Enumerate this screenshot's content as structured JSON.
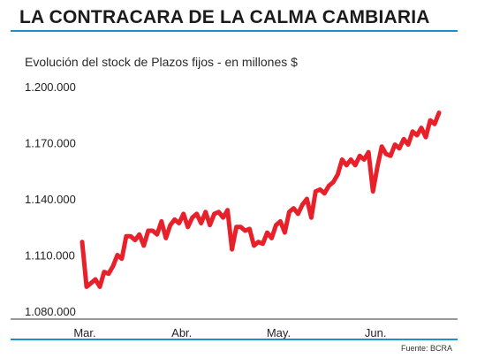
{
  "header": {
    "title": "LA CONTRACARA DE LA CALMA CAMBIARIA",
    "rule_color": "#1e8fce"
  },
  "footer": {
    "source": "Fuente: BCRA"
  },
  "chart_data": {
    "type": "line",
    "subtitle": "Evolución del stock de Plazos fijos - en millones $",
    "xlabel": "",
    "ylabel": "",
    "ylim": [
      1080000,
      1200000
    ],
    "y_ticks": [
      1080000,
      1110000,
      1140000,
      1170000,
      1200000
    ],
    "y_tick_labels": [
      "1.080.000",
      "1.110.000",
      "1.140.000",
      "1.170.000",
      "1.200.000"
    ],
    "x_ticks": [
      {
        "x": 0,
        "label": "Mar."
      },
      {
        "x": 22,
        "label": "Abr."
      },
      {
        "x": 44,
        "label": "May."
      },
      {
        "x": 66,
        "label": "Jun."
      }
    ],
    "xlim": [
      0,
      80
    ],
    "grid": false,
    "line_color": "#e8202a",
    "series": [
      {
        "values": [
          [
            0,
            1117000
          ],
          [
            1,
            1093000
          ],
          [
            2,
            1095000
          ],
          [
            3,
            1097000
          ],
          [
            4,
            1093000
          ],
          [
            5,
            1101000
          ],
          [
            6,
            1100000
          ],
          [
            7,
            1104000
          ],
          [
            8,
            1110000
          ],
          [
            9,
            1108000
          ],
          [
            10,
            1120000
          ],
          [
            11,
            1120000
          ],
          [
            12,
            1118000
          ],
          [
            13,
            1121000
          ],
          [
            14,
            1115000
          ],
          [
            15,
            1123000
          ],
          [
            16,
            1123000
          ],
          [
            17,
            1121000
          ],
          [
            18,
            1128000
          ],
          [
            19,
            1119000
          ],
          [
            20,
            1126000
          ],
          [
            21,
            1129000
          ],
          [
            22,
            1127000
          ],
          [
            23,
            1132000
          ],
          [
            24,
            1125000
          ],
          [
            25,
            1130000
          ],
          [
            26,
            1132000
          ],
          [
            27,
            1127000
          ],
          [
            28,
            1133000
          ],
          [
            29,
            1126000
          ],
          [
            30,
            1132000
          ],
          [
            31,
            1133000
          ],
          [
            32,
            1130000
          ],
          [
            33,
            1134000
          ],
          [
            34,
            1113000
          ],
          [
            35,
            1125000
          ],
          [
            36,
            1125000
          ],
          [
            37,
            1123000
          ],
          [
            38,
            1124000
          ],
          [
            39,
            1115000
          ],
          [
            40,
            1117000
          ],
          [
            41,
            1116000
          ],
          [
            42,
            1122000
          ],
          [
            43,
            1119000
          ],
          [
            44,
            1126000
          ],
          [
            45,
            1128000
          ],
          [
            46,
            1122000
          ],
          [
            47,
            1133000
          ],
          [
            48,
            1135000
          ],
          [
            49,
            1132000
          ],
          [
            50,
            1137000
          ],
          [
            51,
            1140000
          ],
          [
            52,
            1130000
          ],
          [
            53,
            1144000
          ],
          [
            54,
            1145000
          ],
          [
            55,
            1143000
          ],
          [
            56,
            1147000
          ],
          [
            57,
            1149000
          ],
          [
            58,
            1153000
          ],
          [
            59,
            1161000
          ],
          [
            60,
            1158000
          ],
          [
            61,
            1161000
          ],
          [
            62,
            1158000
          ],
          [
            63,
            1163000
          ],
          [
            64,
            1161000
          ],
          [
            65,
            1165000
          ],
          [
            66,
            1144000
          ],
          [
            67,
            1157000
          ],
          [
            68,
            1168000
          ],
          [
            69,
            1164000
          ],
          [
            70,
            1163000
          ],
          [
            71,
            1169000
          ],
          [
            72,
            1167000
          ],
          [
            73,
            1172000
          ],
          [
            74,
            1169000
          ],
          [
            75,
            1176000
          ],
          [
            76,
            1174000
          ],
          [
            77,
            1178000
          ],
          [
            78,
            1173000
          ],
          [
            79,
            1182000
          ],
          [
            80,
            1180000
          ],
          [
            81,
            1186000
          ]
        ]
      }
    ]
  }
}
